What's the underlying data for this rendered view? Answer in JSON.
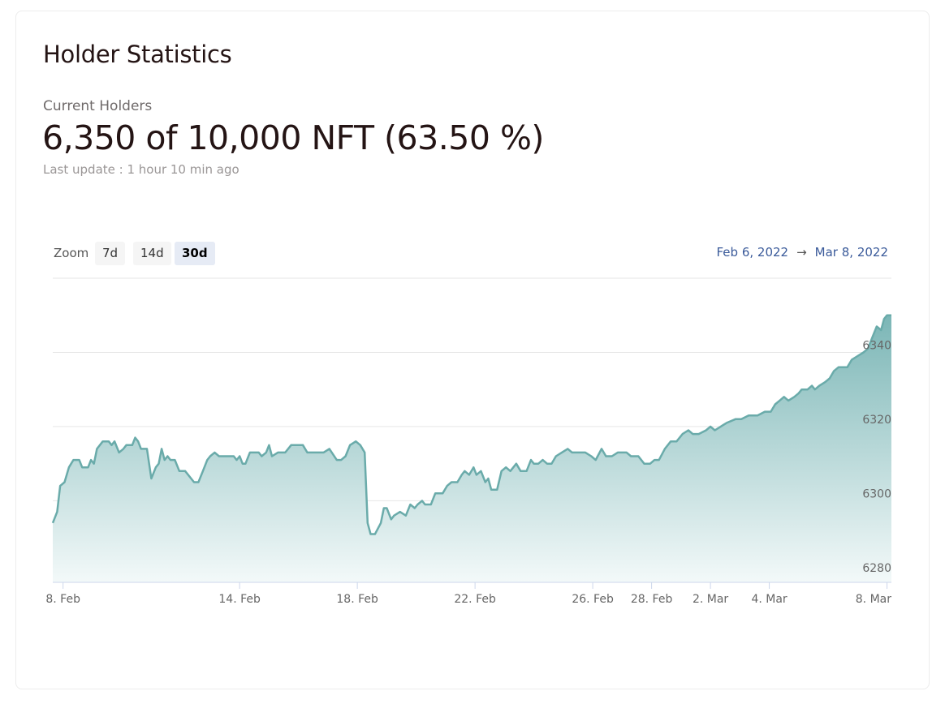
{
  "card": {
    "title": "Holder Statistics",
    "subtitle": "Current Holders",
    "headline": "6,350 of 10,000 NFT (63.50 %)",
    "last_update": "Last update : 1 hour 10 min ago"
  },
  "zoom": {
    "label": "Zoom",
    "buttons": [
      {
        "label": "7d",
        "active": false
      },
      {
        "label": "14d",
        "active": false
      },
      {
        "label": "30d",
        "active": true
      }
    ]
  },
  "range": {
    "from": "Feb 6, 2022",
    "arrow": "→",
    "to": "Mar 8, 2022"
  },
  "colors": {
    "line": "#6aabaa",
    "fill_top": "#7bb6b6",
    "fill_bottom": "#f3f9f9",
    "grid": "#e6e6e6",
    "range_text": "#3a5a9a"
  },
  "chart_data": {
    "type": "area",
    "title": "",
    "xlabel": "",
    "ylabel": "",
    "x_tick_labels": [
      "8. Feb",
      "14. Feb",
      "18. Feb",
      "22. Feb",
      "26. Feb",
      "28. Feb",
      "2. Mar",
      "4. Mar",
      "8. Mar"
    ],
    "x_tick_days": [
      2,
      8,
      12,
      16,
      20,
      22,
      24,
      26,
      30
    ],
    "y_tick_labels": [
      "6280",
      "6300",
      "6320",
      "6340"
    ],
    "y_ticks": [
      6280,
      6300,
      6320,
      6340
    ],
    "ylim": [
      6278,
      6360
    ],
    "xlim": [
      1.65,
      30.15
    ],
    "y_axis_position": "right",
    "grid": true,
    "series": [
      {
        "points": [
          [
            1.65,
            6294
          ],
          [
            1.8,
            6297
          ],
          [
            1.9,
            6304
          ],
          [
            2.05,
            6305
          ],
          [
            2.2,
            6309
          ],
          [
            2.35,
            6311
          ],
          [
            2.55,
            6311
          ],
          [
            2.65,
            6309
          ],
          [
            2.85,
            6309
          ],
          [
            2.95,
            6311
          ],
          [
            3.05,
            6310
          ],
          [
            3.15,
            6314
          ],
          [
            3.35,
            6316
          ],
          [
            3.55,
            6316
          ],
          [
            3.65,
            6315
          ],
          [
            3.75,
            6316
          ],
          [
            3.9,
            6313
          ],
          [
            4.05,
            6314
          ],
          [
            4.15,
            6315
          ],
          [
            4.35,
            6315
          ],
          [
            4.45,
            6317
          ],
          [
            4.55,
            6316
          ],
          [
            4.65,
            6314
          ],
          [
            4.85,
            6314
          ],
          [
            5.0,
            6306
          ],
          [
            5.15,
            6309
          ],
          [
            5.25,
            6310
          ],
          [
            5.35,
            6314
          ],
          [
            5.45,
            6311
          ],
          [
            5.55,
            6312
          ],
          [
            5.65,
            6311
          ],
          [
            5.8,
            6311
          ],
          [
            5.95,
            6308
          ],
          [
            6.15,
            6308
          ],
          [
            6.45,
            6305
          ],
          [
            6.6,
            6305
          ],
          [
            6.75,
            6308
          ],
          [
            6.9,
            6311
          ],
          [
            7.0,
            6312
          ],
          [
            7.15,
            6313
          ],
          [
            7.3,
            6312
          ],
          [
            7.8,
            6312
          ],
          [
            7.9,
            6311
          ],
          [
            8.0,
            6312
          ],
          [
            8.1,
            6310
          ],
          [
            8.2,
            6310
          ],
          [
            8.35,
            6313
          ],
          [
            8.65,
            6313
          ],
          [
            8.75,
            6312
          ],
          [
            8.9,
            6313
          ],
          [
            9.0,
            6315
          ],
          [
            9.1,
            6312
          ],
          [
            9.3,
            6313
          ],
          [
            9.55,
            6313
          ],
          [
            9.75,
            6315
          ],
          [
            10.15,
            6315
          ],
          [
            10.3,
            6313
          ],
          [
            10.85,
            6313
          ],
          [
            11.05,
            6314
          ],
          [
            11.3,
            6311
          ],
          [
            11.45,
            6311
          ],
          [
            11.6,
            6312
          ],
          [
            11.75,
            6315
          ],
          [
            11.95,
            6316
          ],
          [
            12.1,
            6315
          ],
          [
            12.25,
            6313
          ],
          [
            12.35,
            6294
          ],
          [
            12.45,
            6291
          ],
          [
            12.6,
            6291
          ],
          [
            12.8,
            6294
          ],
          [
            12.9,
            6298
          ],
          [
            13.0,
            6298
          ],
          [
            13.15,
            6295
          ],
          [
            13.25,
            6296
          ],
          [
            13.45,
            6297
          ],
          [
            13.65,
            6296
          ],
          [
            13.8,
            6299
          ],
          [
            13.95,
            6298
          ],
          [
            14.05,
            6299
          ],
          [
            14.2,
            6300
          ],
          [
            14.3,
            6299
          ],
          [
            14.5,
            6299
          ],
          [
            14.65,
            6302
          ],
          [
            14.9,
            6302
          ],
          [
            15.05,
            6304
          ],
          [
            15.2,
            6305
          ],
          [
            15.4,
            6305
          ],
          [
            15.55,
            6307
          ],
          [
            15.65,
            6308
          ],
          [
            15.8,
            6307
          ],
          [
            15.95,
            6309
          ],
          [
            16.05,
            6307
          ],
          [
            16.2,
            6308
          ],
          [
            16.35,
            6305
          ],
          [
            16.45,
            6306
          ],
          [
            16.55,
            6303
          ],
          [
            16.75,
            6303
          ],
          [
            16.9,
            6308
          ],
          [
            17.05,
            6309
          ],
          [
            17.2,
            6308
          ],
          [
            17.4,
            6310
          ],
          [
            17.55,
            6308
          ],
          [
            17.75,
            6308
          ],
          [
            17.9,
            6311
          ],
          [
            18.0,
            6310
          ],
          [
            18.15,
            6310
          ],
          [
            18.3,
            6311
          ],
          [
            18.45,
            6310
          ],
          [
            18.6,
            6310
          ],
          [
            18.75,
            6312
          ],
          [
            18.95,
            6313
          ],
          [
            19.15,
            6314
          ],
          [
            19.3,
            6313
          ],
          [
            19.75,
            6313
          ],
          [
            19.95,
            6312
          ],
          [
            20.1,
            6311
          ],
          [
            20.3,
            6314
          ],
          [
            20.45,
            6312
          ],
          [
            20.65,
            6312
          ],
          [
            20.85,
            6313
          ],
          [
            21.15,
            6313
          ],
          [
            21.3,
            6312
          ],
          [
            21.55,
            6312
          ],
          [
            21.75,
            6310
          ],
          [
            21.95,
            6310
          ],
          [
            22.1,
            6311
          ],
          [
            22.25,
            6311
          ],
          [
            22.45,
            6314
          ],
          [
            22.65,
            6316
          ],
          [
            22.85,
            6316
          ],
          [
            23.05,
            6318
          ],
          [
            23.25,
            6319
          ],
          [
            23.4,
            6318
          ],
          [
            23.6,
            6318
          ],
          [
            23.85,
            6319
          ],
          [
            24.0,
            6320
          ],
          [
            24.15,
            6319
          ],
          [
            24.35,
            6320
          ],
          [
            24.55,
            6321
          ],
          [
            24.85,
            6322
          ],
          [
            25.05,
            6322
          ],
          [
            25.3,
            6323
          ],
          [
            25.6,
            6323
          ],
          [
            25.85,
            6324
          ],
          [
            26.05,
            6324
          ],
          [
            26.2,
            6326
          ],
          [
            26.35,
            6327
          ],
          [
            26.5,
            6328
          ],
          [
            26.65,
            6327
          ],
          [
            26.85,
            6328
          ],
          [
            27.0,
            6329
          ],
          [
            27.1,
            6330
          ],
          [
            27.3,
            6330
          ],
          [
            27.45,
            6331
          ],
          [
            27.55,
            6330
          ],
          [
            27.7,
            6331
          ],
          [
            27.9,
            6332
          ],
          [
            28.05,
            6333
          ],
          [
            28.2,
            6335
          ],
          [
            28.35,
            6336
          ],
          [
            28.5,
            6336
          ],
          [
            28.65,
            6336
          ],
          [
            28.8,
            6338
          ],
          [
            29.0,
            6339
          ],
          [
            29.2,
            6340
          ],
          [
            29.35,
            6341
          ],
          [
            29.5,
            6344
          ],
          [
            29.65,
            6347
          ],
          [
            29.8,
            6346
          ],
          [
            29.9,
            6349
          ],
          [
            30.0,
            6350
          ],
          [
            30.15,
            6350
          ]
        ]
      }
    ]
  }
}
